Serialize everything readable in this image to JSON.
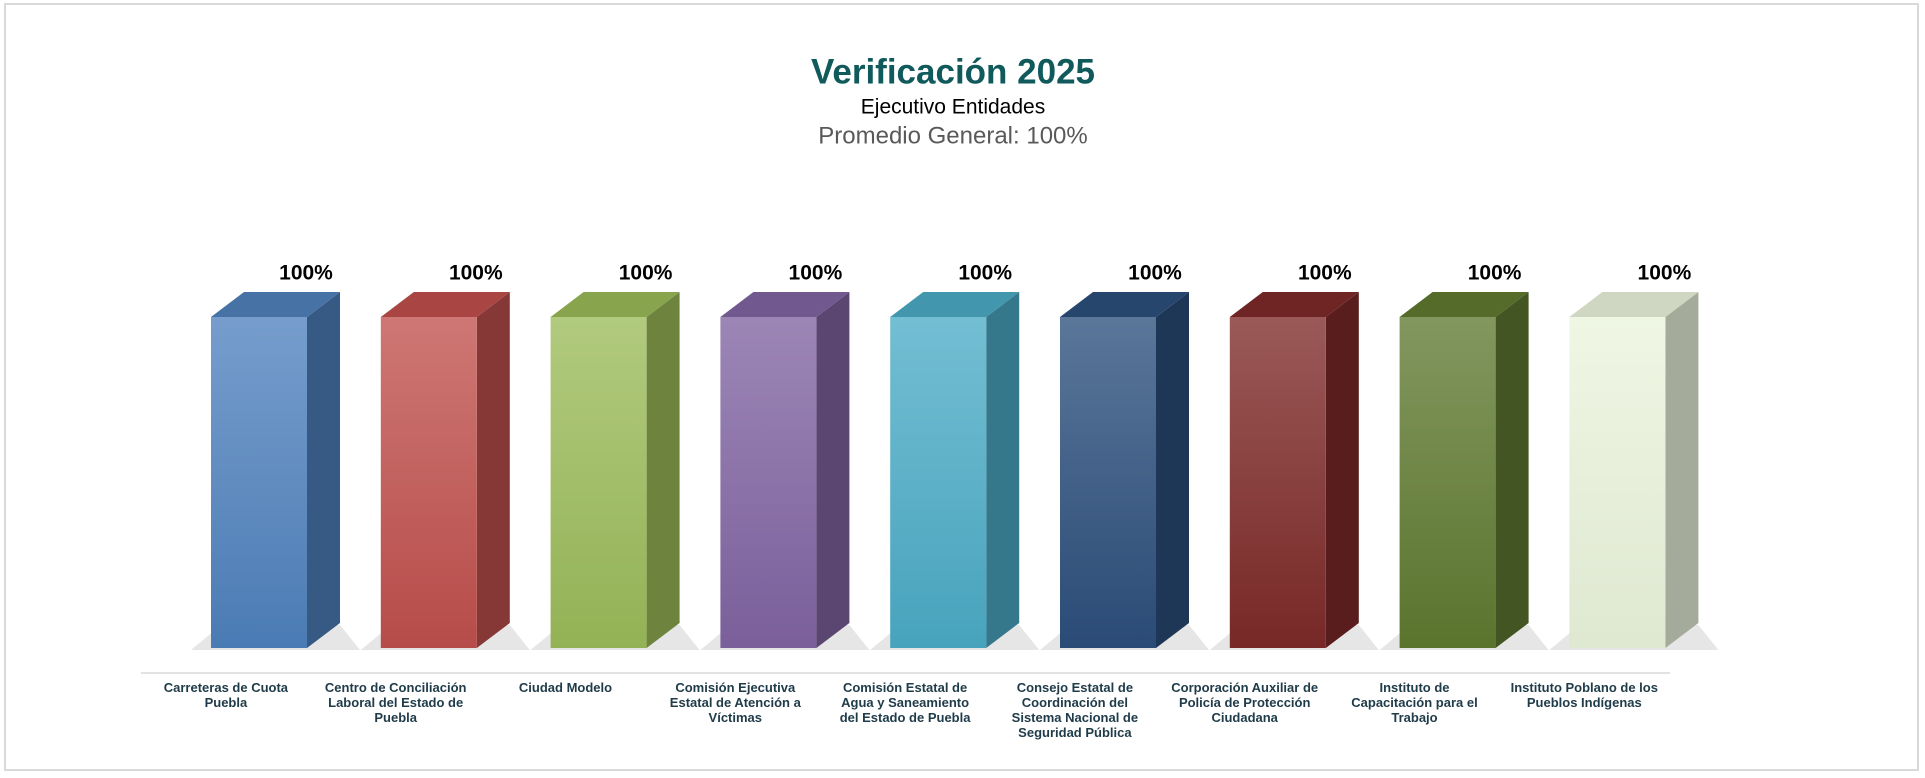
{
  "chart_data": {
    "type": "bar3d",
    "title": "Verificación 2025",
    "subtitle": "Ejecutivo Entidades",
    "summary": "Promedio General: 100%",
    "categories": [
      "Carreteras de Cuota Puebla",
      "Centro de Conciliación Laboral del Estado de Puebla",
      "Ciudad Modelo",
      "Comisión Ejecutiva Estatal de Atención a Víctimas",
      "Comisión Estatal de Agua y Saneamiento del Estado de Puebla",
      "Consejo Estatal de Coordinación del Sistema Nacional de Seguridad Pública",
      "Corporación Auxiliar de Policía de Protección Ciudadana",
      "Instituto de Capacitación para el Trabajo",
      "Instituto Poblano de los Pueblos Indígenas"
    ],
    "values": [
      100,
      100,
      100,
      100,
      100,
      100,
      100,
      100,
      100
    ],
    "value_labels": [
      "100%",
      "100%",
      "100%",
      "100%",
      "100%",
      "100%",
      "100%",
      "100%",
      "100%"
    ],
    "colors": [
      "#4f81bd",
      "#c0504d",
      "#9bbb59",
      "#8064a2",
      "#4bacc6",
      "#2c4f7c",
      "#7d2a28",
      "#5f7a30",
      "#ebf4dc"
    ],
    "ylim": [
      0,
      100
    ]
  }
}
